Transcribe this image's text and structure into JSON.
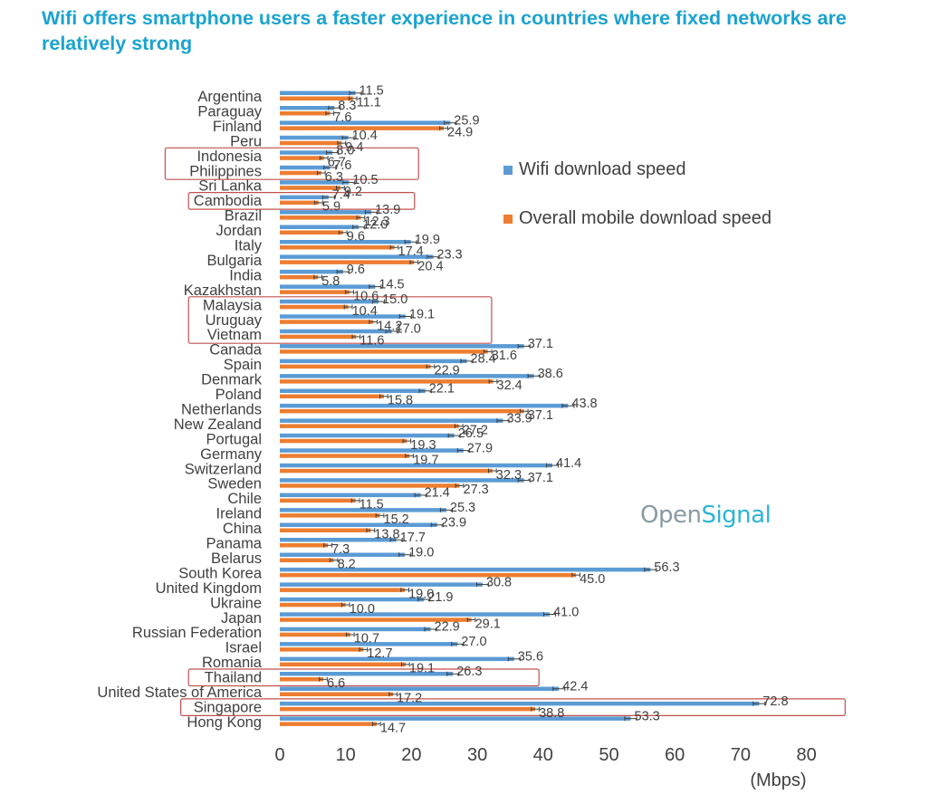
{
  "title": "Wifi offers smartphone users a faster experience in countries where fixed networks are relatively strong",
  "watermark": {
    "open": "Open",
    "signal": "Signal"
  },
  "colors": {
    "title": "#1ba3cf",
    "wifi": "#5b9bd5",
    "overall": "#ed7d31",
    "highlight_box": "#c0504d",
    "text": "#404040"
  },
  "chart_data": {
    "type": "bar",
    "orientation": "horizontal",
    "title": "Wifi offers smartphone users a faster experience in countries where fixed networks are relatively strong",
    "xlabel": "(Mbps)",
    "ylabel": "",
    "xlim": [
      0,
      80
    ],
    "xticks": [
      0,
      10,
      20,
      30,
      40,
      50,
      60,
      70,
      80
    ],
    "grid": false,
    "legend_position": "right",
    "error_bars": true,
    "categories": [
      "Argentina",
      "Paraguay",
      "Finland",
      "Peru",
      "Indonesia",
      "Philippines",
      "Sri Lanka",
      "Cambodia",
      "Brazil",
      "Jordan",
      "Italy",
      "Bulgaria",
      "India",
      "Kazakhstan",
      "Malaysia",
      "Uruguay",
      "Vietnam",
      "Canada",
      "Spain",
      "Denmark",
      "Poland",
      "Netherlands",
      "New Zealand",
      "Portugal",
      "Germany",
      "Switzerland",
      "Sweden",
      "Chile",
      "Ireland",
      "China",
      "Panama",
      "Belarus",
      "South Korea",
      "United Kingdom",
      "Ukraine",
      "Japan",
      "Russian Federation",
      "Israel",
      "Romania",
      "Thailand",
      "United States of America",
      "Singapore",
      "Hong Kong"
    ],
    "series": [
      {
        "name": "Wifi download speed",
        "color": "#5b9bd5",
        "values": [
          11.5,
          8.3,
          25.9,
          10.4,
          8.0,
          7.6,
          10.5,
          7.4,
          13.9,
          12.0,
          19.9,
          23.3,
          9.6,
          14.5,
          15.0,
          19.1,
          17.0,
          37.1,
          28.4,
          38.6,
          22.1,
          43.8,
          33.9,
          26.5,
          27.9,
          41.4,
          37.1,
          21.4,
          25.3,
          23.9,
          17.7,
          19.0,
          56.3,
          30.8,
          21.9,
          41.0,
          22.9,
          27.0,
          35.6,
          26.3,
          42.4,
          72.8,
          53.3
        ]
      },
      {
        "name": "Overall mobile download speed",
        "color": "#ed7d31",
        "values": [
          11.1,
          7.6,
          24.9,
          9.4,
          6.7,
          6.3,
          9.2,
          5.9,
          12.3,
          9.6,
          17.4,
          20.4,
          5.8,
          10.6,
          10.4,
          14.2,
          11.6,
          31.6,
          22.9,
          32.4,
          15.8,
          37.1,
          27.2,
          19.3,
          19.7,
          32.3,
          27.3,
          11.5,
          15.2,
          13.8,
          7.3,
          8.2,
          45.0,
          19.0,
          10.0,
          29.1,
          10.7,
          12.7,
          19.1,
          6.6,
          17.2,
          38.8,
          14.7
        ]
      }
    ],
    "highlighted": [
      "Indonesia",
      "Philippines",
      "Cambodia",
      "Malaysia",
      "Uruguay",
      "Vietnam",
      "Thailand",
      "Singapore"
    ]
  }
}
